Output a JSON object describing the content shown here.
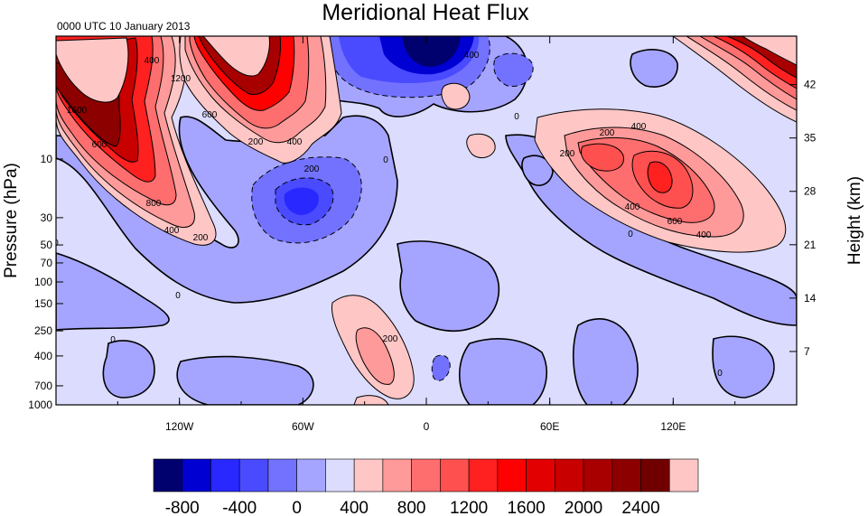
{
  "chart_data": {
    "type": "heatmap",
    "title": "Meridional Heat Flux",
    "subtitle": "0000 UTC 10 January 2013",
    "ylabel_left": "Pressure (hPa)",
    "ylabel_right": "Height (km)",
    "x_ticks": [
      "120W",
      "60W",
      "0",
      "60E",
      "120E"
    ],
    "x_tick_values": [
      -120,
      -60,
      0,
      60,
      120
    ],
    "xlim": [
      -180,
      180
    ],
    "y_left_ticks": [
      "10",
      "30",
      "50",
      "70",
      "100",
      "150",
      "250",
      "400",
      "700",
      "1000"
    ],
    "y_left_values": [
      10,
      30,
      50,
      70,
      100,
      150,
      250,
      400,
      700,
      1000
    ],
    "y_right_ticks": [
      "42",
      "35",
      "28",
      "21",
      "14",
      "7"
    ],
    "y_right_values": [
      42,
      35,
      28,
      21,
      14,
      7
    ],
    "colorbar": {
      "colors": [
        "#00006e",
        "#0000d2",
        "#2828ff",
        "#4a4aff",
        "#7272ff",
        "#a5a5ff",
        "#dcdcff",
        "#ffc6c6",
        "#ff9a9a",
        "#ff6e6e",
        "#ff5050",
        "#ff2020",
        "#ff0000",
        "#e20000",
        "#c80000",
        "#a80000",
        "#8c0000",
        "#700000",
        "#ffc6c6"
      ],
      "labels": [
        "-800",
        "-400",
        "0",
        "400",
        "800",
        "1200",
        "1600",
        "2000",
        "2400"
      ],
      "label_values": [
        -800,
        -400,
        0,
        400,
        800,
        1200,
        1600,
        2000,
        2400
      ]
    },
    "contour_labels": [
      "400",
      "1200",
      "600",
      "1600",
      "600",
      "200",
      "400",
      "200",
      "800",
      "400",
      "200",
      "400",
      "0",
      "200",
      "400",
      "200",
      "400",
      "600",
      "400",
      "0",
      "0",
      "0",
      "200",
      "0",
      "0",
      "0"
    ],
    "features": [
      {
        "kind": "positive",
        "lon": -160,
        "p": 8,
        "peak": 2400
      },
      {
        "kind": "positive",
        "lon": -95,
        "p": 3,
        "peak": 2400
      },
      {
        "kind": "positive",
        "lon": 155,
        "p": 3,
        "peak": 2400
      },
      {
        "kind": "positive",
        "lon": 100,
        "p": 15,
        "peak": 1000
      },
      {
        "kind": "negative",
        "lon": 0,
        "p": 2,
        "peak": -1000
      },
      {
        "kind": "negative",
        "lon": -58,
        "p": 22,
        "peak": -800
      },
      {
        "kind": "positive",
        "lon": -22,
        "p": 350,
        "peak": 300
      }
    ]
  }
}
